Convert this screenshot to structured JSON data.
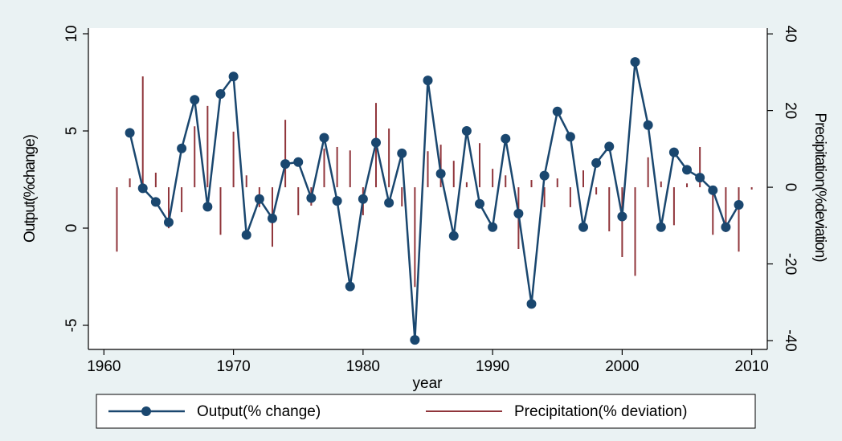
{
  "chart_data": {
    "type": "line",
    "x_label": "year",
    "y_label": "Output(%change)",
    "y2_label": "Precipitation(%deviation)",
    "x": [
      1961,
      1962,
      1963,
      1964,
      1965,
      1966,
      1967,
      1968,
      1969,
      1970,
      1971,
      1972,
      1973,
      1974,
      1975,
      1976,
      1977,
      1978,
      1979,
      1980,
      1981,
      1982,
      1983,
      1984,
      1985,
      1986,
      1987,
      1988,
      1989,
      1990,
      1991,
      1992,
      1993,
      1994,
      1995,
      1996,
      1997,
      1998,
      1999,
      2000,
      2001,
      2002,
      2003,
      2004,
      2005,
      2006,
      2007,
      2008,
      2009,
      2010
    ],
    "xlim": [
      1958.8,
      2011.2
    ],
    "xticks": [
      1960,
      1970,
      1980,
      1990,
      2000,
      2010
    ],
    "ylim": [
      -6.24,
      10.29
    ],
    "yticks": [
      -5,
      0,
      5,
      10
    ],
    "y2lim": [
      -42.3,
      41.5
    ],
    "y2ticks": [
      -40,
      -20,
      0,
      20,
      40
    ],
    "grid": false,
    "legend": "bottom",
    "series": [
      {
        "name": "Output(% change)",
        "color": "#1a476f",
        "style": "line-marker",
        "values": [
          null,
          4.9,
          2.05,
          1.35,
          0.3,
          4.1,
          6.6,
          1.1,
          6.9,
          7.8,
          -0.35,
          1.5,
          0.5,
          3.3,
          3.4,
          1.55,
          4.65,
          1.4,
          -3.0,
          1.5,
          4.4,
          1.3,
          3.85,
          -5.75,
          7.6,
          2.8,
          -0.4,
          5.0,
          1.25,
          0.05,
          4.6,
          0.75,
          -3.9,
          2.7,
          6.0,
          4.7,
          0.05,
          3.35,
          4.2,
          0.6,
          8.55,
          5.3,
          0.05,
          3.9,
          3.0,
          2.6,
          1.95,
          0.05,
          1.2,
          null
        ]
      },
      {
        "name": "Precipitation(% deviation)",
        "color": "#90353b",
        "style": "spike",
        "axis": "y2",
        "values": [
          -16.8,
          2.3,
          28.9,
          3.8,
          -10.7,
          -6.5,
          15.9,
          21.2,
          -12.4,
          14.5,
          3.1,
          -5.2,
          -15.5,
          17.6,
          -7.3,
          -4.8,
          10.1,
          10.5,
          9.6,
          -7.3,
          22.0,
          15.3,
          -5.0,
          -26.0,
          9.4,
          11.1,
          6.9,
          1.3,
          11.5,
          4.8,
          3.1,
          -16.1,
          1.9,
          -5.2,
          2.3,
          -5.2,
          4.4,
          -1.9,
          -11.5,
          -18.2,
          -23.1,
          7.8,
          1.5,
          -9.9,
          1.0,
          10.5,
          -12.4,
          -11.7,
          -16.8,
          -0.6
        ]
      }
    ]
  }
}
